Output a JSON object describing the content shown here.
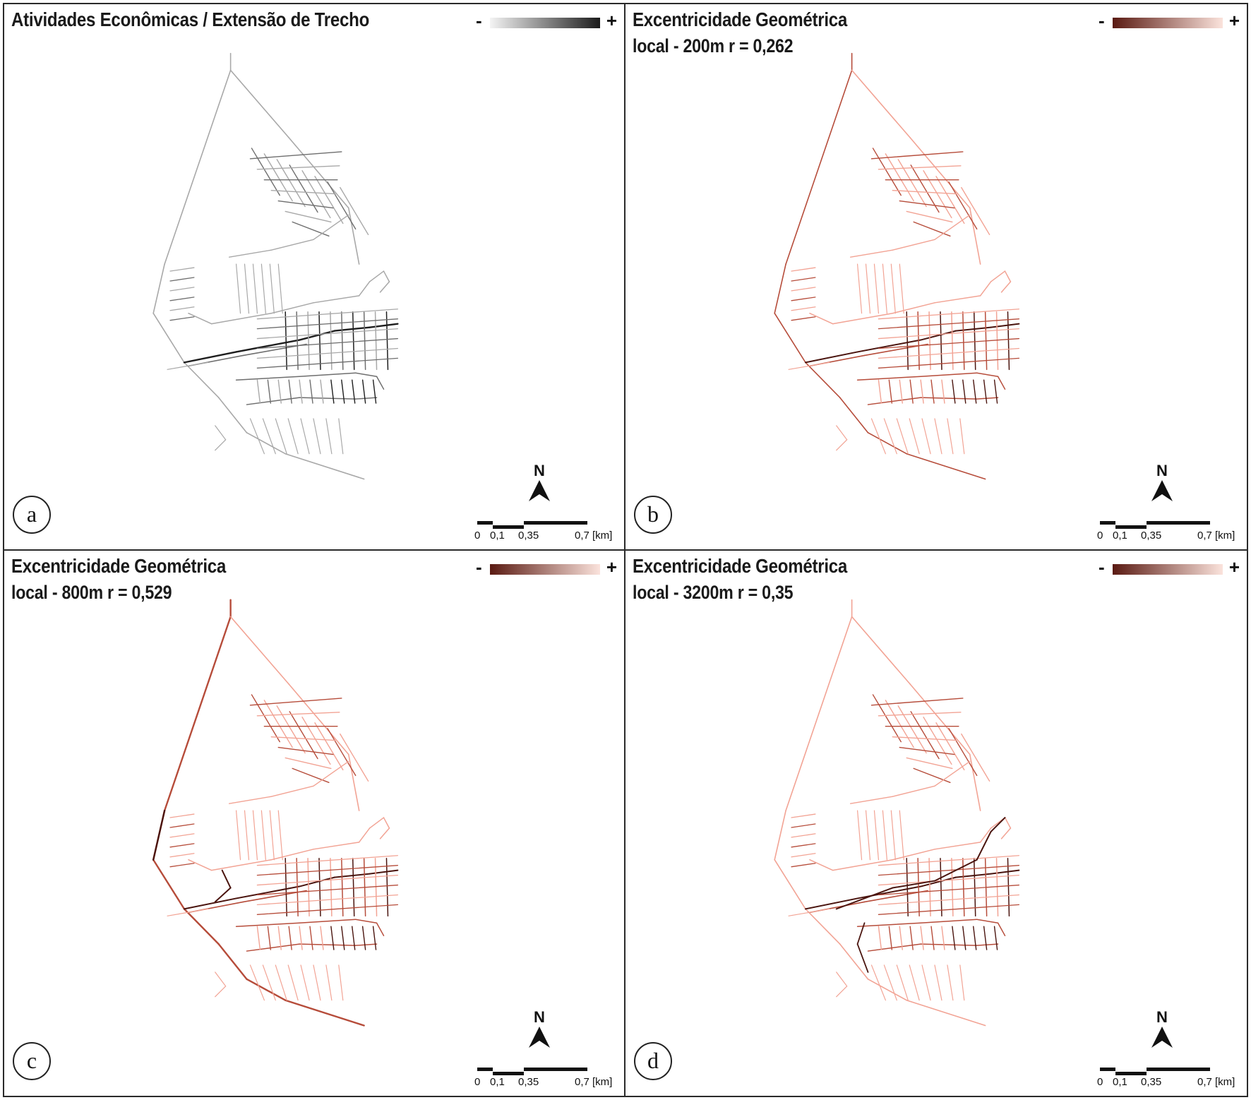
{
  "panels": [
    {
      "id": "a",
      "letter": "a",
      "title": "Atividades Econômicas / Extensão de Trecho",
      "subtitle": "",
      "legend": {
        "minus": "-",
        "plus": "+",
        "ramp_from": "#f4f4f4",
        "ramp_to": "#1b1b1b"
      },
      "network": {
        "light": "#a8a8a8",
        "mid": "#6e6e6e",
        "dark": "#1e1e1e"
      }
    },
    {
      "id": "b",
      "letter": "b",
      "title": "Excentricidade Geométrica",
      "subtitle": "local - 200m  r = 0,262",
      "legend": {
        "minus": "-",
        "plus": "+",
        "ramp_from": "#5a1a12",
        "ramp_to": "#fbe3dc"
      },
      "network": {
        "light": "#f2a394",
        "mid": "#b64c3a",
        "dark": "#4a140e"
      }
    },
    {
      "id": "c",
      "letter": "c",
      "title": "Excentricidade Geométrica",
      "subtitle": "local - 800m  r = 0,529",
      "legend": {
        "minus": "-",
        "plus": "+",
        "ramp_from": "#5a1a12",
        "ramp_to": "#fbe3dc"
      },
      "network": {
        "light": "#f2a394",
        "mid": "#b64c3a",
        "dark": "#4a140e"
      }
    },
    {
      "id": "d",
      "letter": "d",
      "title": "Excentricidade Geométrica",
      "subtitle": "local - 3200m  r = 0,35",
      "legend": {
        "minus": "-",
        "plus": "+",
        "ramp_from": "#5a1a12",
        "ramp_to": "#fbe3dc"
      },
      "network": {
        "light": "#f2a394",
        "mid": "#b64c3a",
        "dark": "#4a140e"
      }
    }
  ],
  "north_label": "N",
  "scale": {
    "ticks": [
      "0",
      "0,1",
      "0,35",
      "0,7 [km]"
    ]
  }
}
